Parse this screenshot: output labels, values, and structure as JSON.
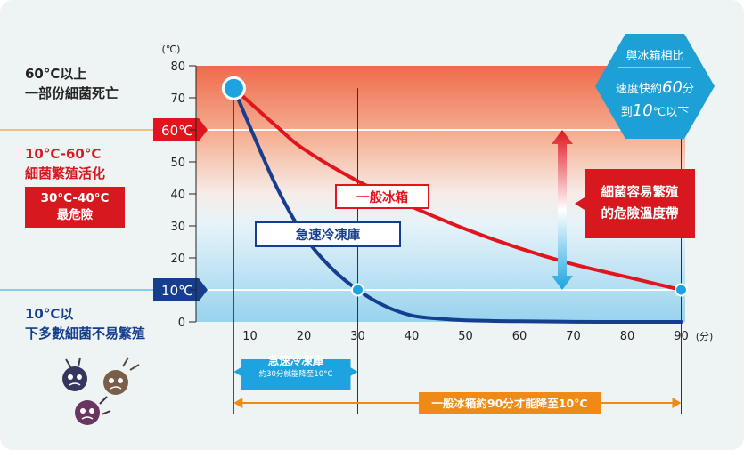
{
  "chart_data": {
    "type": "line",
    "x_unit": "(分)",
    "y_unit": "(℃)",
    "x_ticks": [
      10,
      20,
      30,
      40,
      50,
      60,
      70,
      80,
      90
    ],
    "y_ticks": [
      0,
      10,
      20,
      30,
      40,
      50,
      60,
      70,
      80
    ],
    "xlim": [
      0,
      93
    ],
    "ylim": [
      0,
      80
    ],
    "start_point": {
      "x": 7,
      "y": 73
    },
    "series": [
      {
        "name": "急速冷凍庫",
        "color": "#153e8e",
        "points": [
          [
            7,
            73
          ],
          [
            10,
            61
          ],
          [
            15,
            42
          ],
          [
            20,
            27
          ],
          [
            25,
            17
          ],
          [
            30,
            10
          ],
          [
            35,
            5
          ],
          [
            40,
            2
          ],
          [
            45,
            1
          ],
          [
            50,
            0.5
          ],
          [
            60,
            0.2
          ],
          [
            75,
            0
          ],
          [
            90,
            0
          ]
        ]
      },
      {
        "name": "一般冰箱",
        "color": "#e0151e",
        "points": [
          [
            7,
            73
          ],
          [
            15,
            61
          ],
          [
            20,
            54
          ],
          [
            30,
            44
          ],
          [
            40,
            36
          ],
          [
            50,
            29
          ],
          [
            60,
            23
          ],
          [
            70,
            18
          ],
          [
            80,
            14
          ],
          [
            90,
            10
          ]
        ]
      }
    ],
    "markers": [
      {
        "x": 30,
        "y": 10
      },
      {
        "x": 90,
        "y": 10
      }
    ],
    "reference_lines": [
      {
        "y": 60,
        "label": "60℃"
      },
      {
        "y": 10,
        "label": "10℃"
      }
    ],
    "danger_band": {
      "from": 10,
      "to": 60,
      "label_line1": "細菌容易繁殖",
      "label_line2": "的危險溫度帶"
    },
    "comparison": {
      "line1": "與冰箱相比",
      "line2": "速度快約",
      "value1": "60",
      "unit1": "分",
      "line3": "到",
      "value2": "10",
      "unit2": "℃以下"
    }
  },
  "zones": {
    "top": {
      "line1": "60°C以上",
      "line2": "一部份細菌死亡"
    },
    "middle": {
      "line1": "10°C-60°C",
      "line2": "細菌繁殖活化"
    },
    "danger": {
      "line1": "30°C-40°C",
      "line2": "最危險"
    },
    "bottom": {
      "line1": "10°C以",
      "line2": "下多數細菌不易繁殖"
    }
  },
  "timelines": {
    "fast": {
      "title": "急速冷凍庫",
      "subtitle": "約30分就能降至10°C",
      "x_from": 7,
      "x_to": 30
    },
    "normal": {
      "label": "一般冰箱約90分才能降至10°C",
      "x_from": 7,
      "x_to": 90
    }
  },
  "colors": {
    "hot": "#ee6b4a",
    "cold": "#98d3ee",
    "red": "#e0151e",
    "navy": "#153e8e",
    "blue_accent": "#1ca3e0",
    "orange": "#ef8a16",
    "teal": "#1aa8d4"
  }
}
